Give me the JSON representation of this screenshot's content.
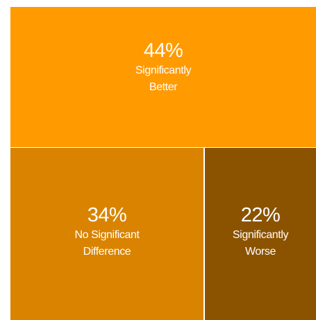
{
  "chart_data": {
    "type": "treemap",
    "title": "",
    "items": [
      {
        "value": 44,
        "pct_label": "44%",
        "label_lines": [
          "Significantly",
          "Better"
        ],
        "color": "#FF9A00"
      },
      {
        "value": 34,
        "pct_label": "34%",
        "label_lines": [
          "No Significant",
          "Difference"
        ],
        "color": "#D98300"
      },
      {
        "value": 22,
        "pct_label": "22%",
        "label_lines": [
          "Significantly",
          "Worse"
        ],
        "color": "#8B5300"
      }
    ],
    "border_color": "#ffffff"
  }
}
